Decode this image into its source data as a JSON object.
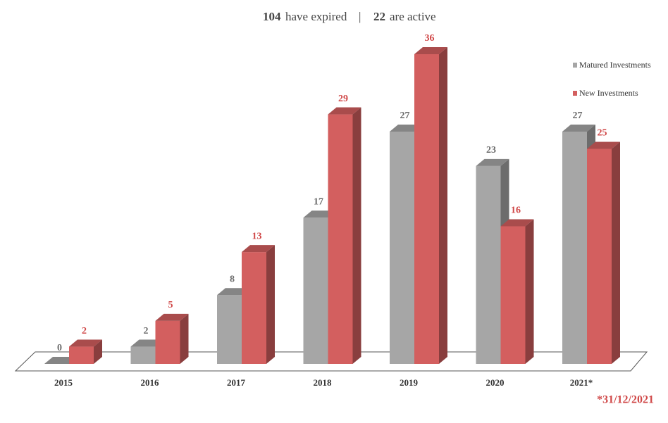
{
  "chart_data": {
    "type": "bar3d",
    "summary": [
      {
        "count": 104,
        "label": "have expired"
      },
      {
        "count": 22,
        "label": "are active"
      }
    ],
    "separator": "|",
    "categories": [
      "2015",
      "2016",
      "2017",
      "2018",
      "2019",
      "2020",
      "2021*"
    ],
    "series": [
      {
        "name": "Matured Investments",
        "color": "#a6a6a6",
        "label_color": "#6b6b6b",
        "values": [
          0,
          2,
          8,
          17,
          27,
          23,
          27
        ]
      },
      {
        "name": "New Investments",
        "color": "#d35f5f",
        "label_color": "#d04848",
        "values": [
          2,
          5,
          13,
          29,
          36,
          16,
          25
        ]
      }
    ],
    "legend": "top-right",
    "footnote": "*31/12/2021"
  }
}
